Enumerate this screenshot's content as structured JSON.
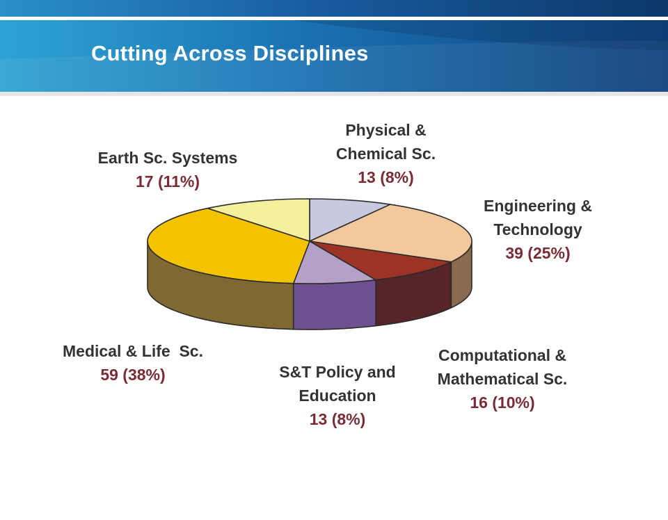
{
  "slide": {
    "title": "Cutting Across Disciplines"
  },
  "colors": {
    "header_dark": "#0e3f78",
    "header_mid": "#1a6fb0",
    "header_light": "#2fa4d4",
    "label_name": "#333333",
    "label_value": "#7a2c36"
  },
  "chart_data": {
    "type": "pie",
    "style": "3d-tilted",
    "title": "",
    "legend": "none",
    "slices": [
      {
        "name": "Physical &\nChemical Sc.",
        "count": 13,
        "percent": 8,
        "value_label": "13 (8%)",
        "top_color": "#c8c8e0",
        "side_color": "#8e8eae"
      },
      {
        "name": "Engineering &\nTechnology",
        "count": 39,
        "percent": 25,
        "value_label": "39 (25%)",
        "top_color": "#f2c99c",
        "side_color": "#8b6a4f"
      },
      {
        "name": "Computational &\nMathematical Sc.",
        "count": 16,
        "percent": 10,
        "value_label": "16 (10%)",
        "top_color": "#9c3326",
        "side_color": "#552529"
      },
      {
        "name": "S&T Policy and\nEducation",
        "count": 13,
        "percent": 8,
        "value_label": "13 (8%)",
        "top_color": "#b5a1c8",
        "side_color": "#6e5090"
      },
      {
        "name": "Medical & Life  Sc.",
        "count": 59,
        "percent": 38,
        "value_label": "59 (38%)",
        "top_color": "#f4c300",
        "side_color": "#7f6932"
      },
      {
        "name": "Earth Sc. Systems",
        "count": 17,
        "percent": 11,
        "value_label": "17 (11%)",
        "top_color": "#f5f09d",
        "side_color": "#b8b16a"
      }
    ]
  }
}
